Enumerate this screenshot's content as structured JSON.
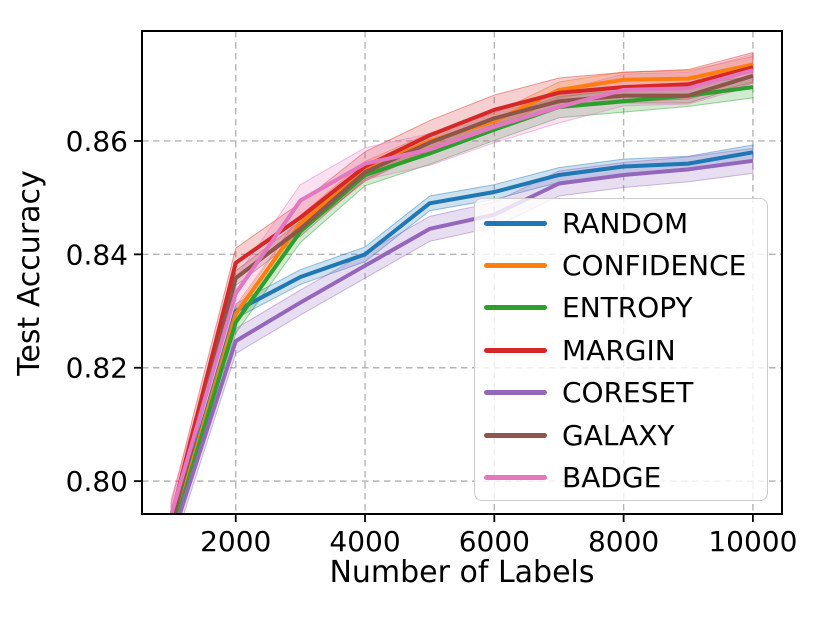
{
  "figure": {
    "background_color": "#ffffff",
    "spine_color": "#000000",
    "grid_color": "#b5b5b5",
    "text_color": "#000000"
  },
  "chart_data": {
    "type": "line",
    "title": "",
    "xlabel": "Number of Labels",
    "ylabel": "Test Accuracy",
    "x": [
      1000,
      2000,
      3000,
      4000,
      5000,
      6000,
      7000,
      8000,
      9000,
      10000
    ],
    "xlim": [
      550,
      10450
    ],
    "ylim": [
      0.7942,
      0.8794
    ],
    "xticks": [
      2000,
      4000,
      6000,
      8000,
      10000
    ],
    "xtick_labels": [
      "2000",
      "4000",
      "6000",
      "8000",
      "10000"
    ],
    "yticks": [
      0.8,
      0.82,
      0.84,
      0.86
    ],
    "ytick_labels": [
      "0.80",
      "0.82",
      "0.84",
      "0.86"
    ],
    "grid": true,
    "grid_style": "dashed",
    "legend_position": "lower right",
    "series": [
      {
        "name": "RANDOM",
        "color": "#1f77b4",
        "band_halfwidth": 0.0013,
        "values": [
          0.791,
          0.83,
          0.836,
          0.84,
          0.849,
          0.851,
          0.854,
          0.8555,
          0.856,
          0.858
        ]
      },
      {
        "name": "CONFIDENCE",
        "color": "#ff7f0e",
        "band_halfwidth": 0.0014,
        "values": [
          0.7905,
          0.8295,
          0.8455,
          0.855,
          0.86,
          0.8635,
          0.869,
          0.8708,
          0.871,
          0.8735
        ]
      },
      {
        "name": "ENTROPY",
        "color": "#2ca02c",
        "band_halfwidth": 0.0019,
        "values": [
          0.79,
          0.828,
          0.844,
          0.854,
          0.8578,
          0.862,
          0.866,
          0.867,
          0.868,
          0.8695
        ]
      },
      {
        "name": "MARGIN",
        "color": "#d62728",
        "band_halfwidth": 0.0026,
        "values": [
          0.7935,
          0.8385,
          0.8465,
          0.8555,
          0.861,
          0.8655,
          0.8685,
          0.8695,
          0.87,
          0.873
        ]
      },
      {
        "name": "CORESET",
        "color": "#9467bd",
        "band_halfwidth": 0.0022,
        "values": [
          0.7895,
          0.8247,
          0.8315,
          0.838,
          0.8445,
          0.847,
          0.8525,
          0.854,
          0.855,
          0.8565
        ]
      },
      {
        "name": "GALAXY",
        "color": "#8c564b",
        "band_halfwidth": 0.0013,
        "values": [
          0.792,
          0.8358,
          0.8445,
          0.8545,
          0.8597,
          0.864,
          0.867,
          0.868,
          0.868,
          0.8715
        ]
      },
      {
        "name": "BADGE",
        "color": "#e377c2",
        "band_halfwidth": 0.0028,
        "values": [
          0.794,
          0.8331,
          0.8495,
          0.856,
          0.8585,
          0.8625,
          0.866,
          0.869,
          0.8693,
          0.8725
        ]
      }
    ]
  }
}
